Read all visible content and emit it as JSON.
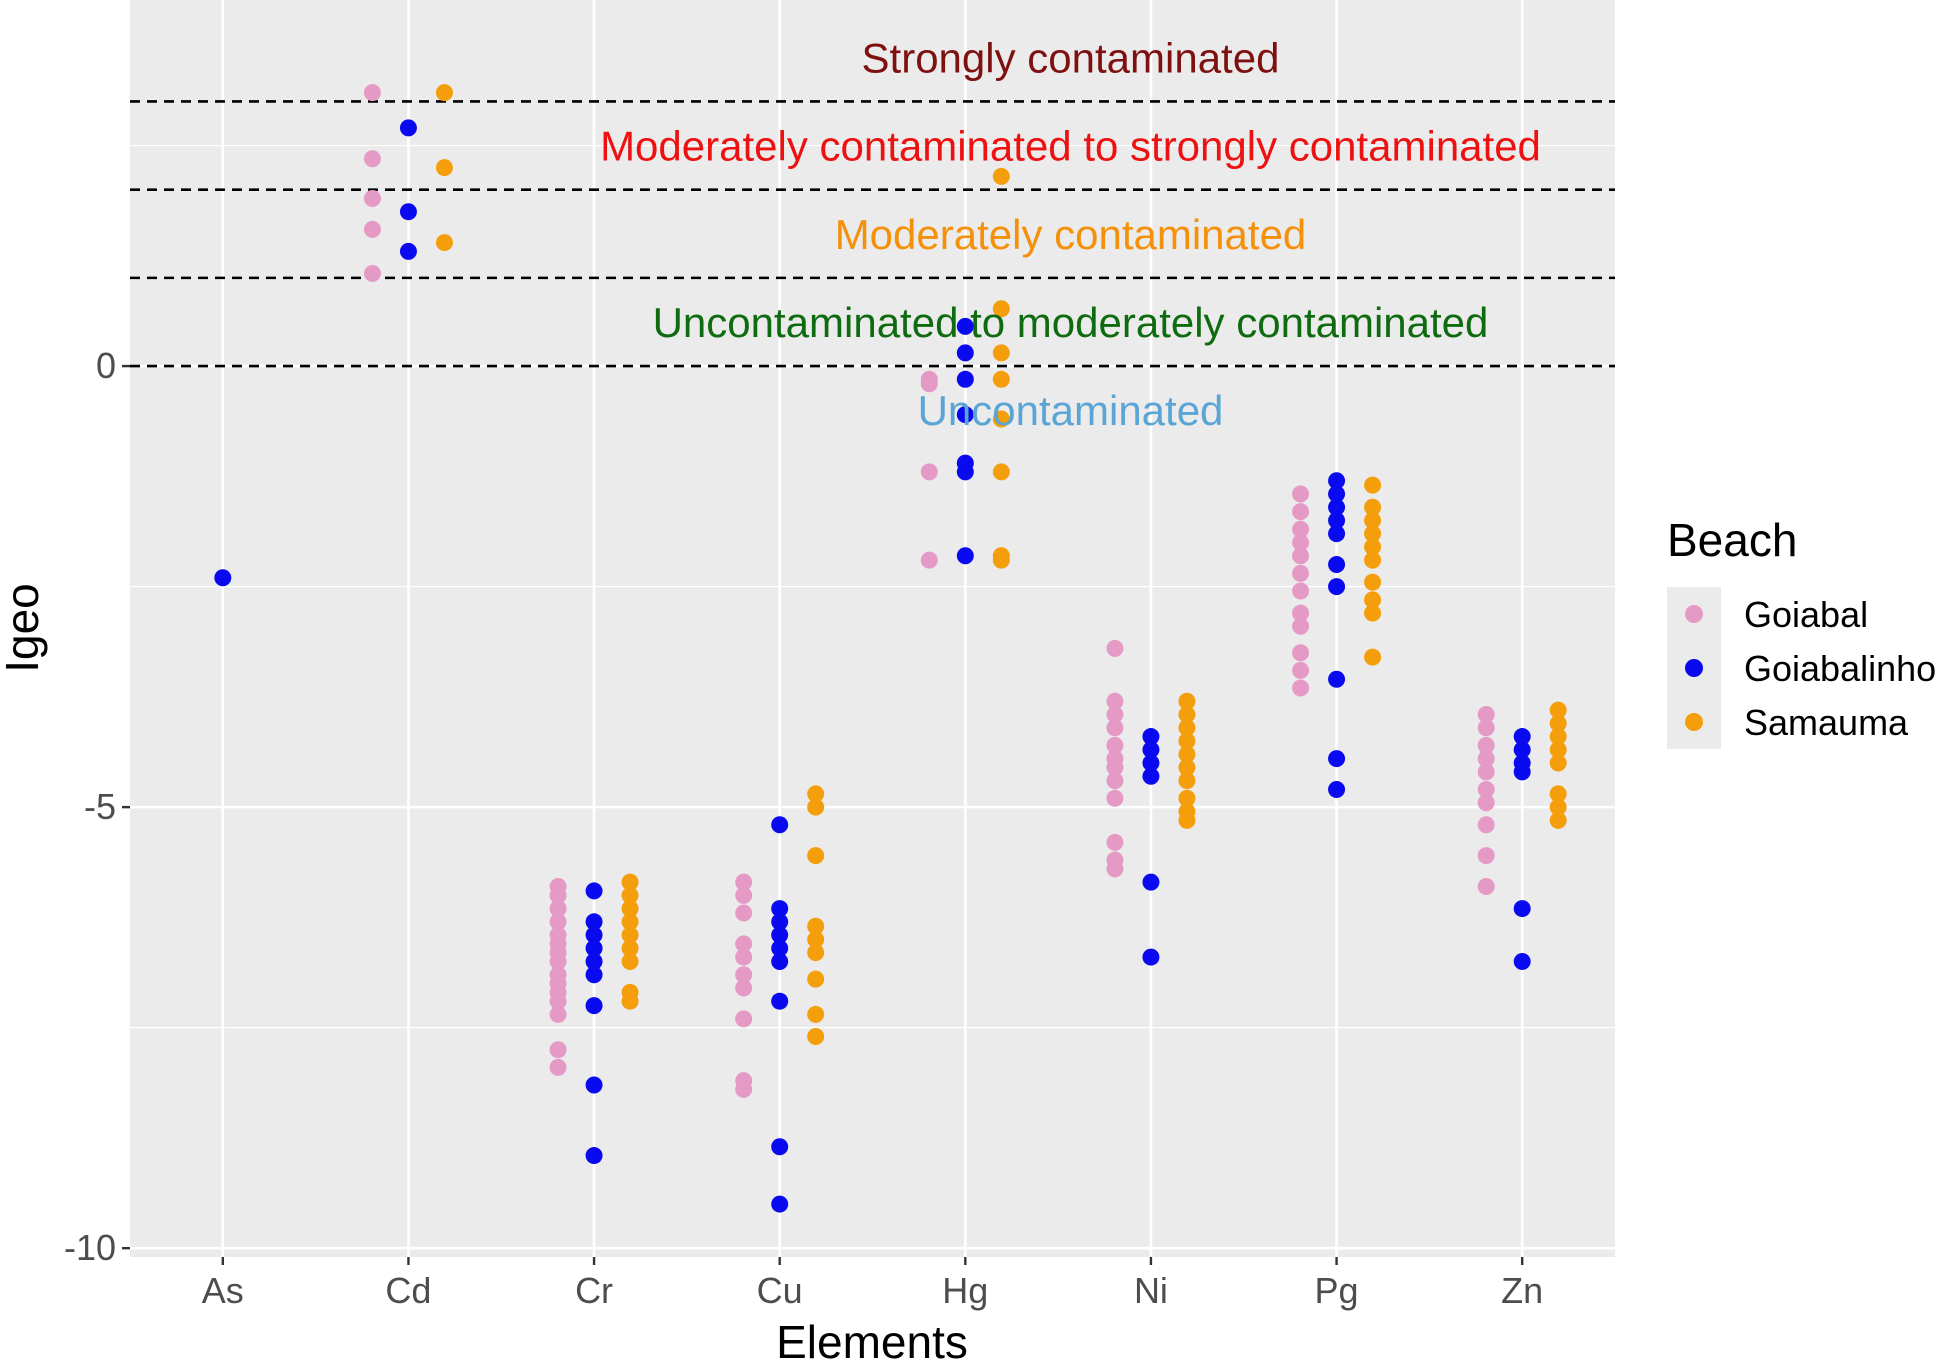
{
  "chart_data": {
    "type": "scatter",
    "xlabel": "Elements",
    "ylabel": "Igeo",
    "categories": [
      "As",
      "Cd",
      "Cr",
      "Cu",
      "Hg",
      "Ni",
      "Pg",
      "Zn"
    ],
    "ylim": [
      -10.1,
      4.15
    ],
    "yticks": [
      0,
      -5,
      -10
    ],
    "ytick_labels": [
      "0",
      "-5",
      "-10"
    ],
    "grid": true,
    "thresholds": [
      3,
      2,
      1,
      0
    ],
    "zones": [
      {
        "label": "Strongly contaminated",
        "y": 3.5,
        "color": "#7f1010"
      },
      {
        "label": "Moderately contaminated to strongly contaminated",
        "y": 2.5,
        "color": "#ee1111"
      },
      {
        "label": "Moderately contaminated",
        "y": 1.5,
        "color": "#f5900a"
      },
      {
        "label": "Uncontaminated to moderately contaminated",
        "y": 0.5,
        "color": "#0f6b0f"
      },
      {
        "label": "Uncontaminated",
        "y": -0.5,
        "color": "#5aa5d5"
      }
    ],
    "legend": {
      "title": "Beach",
      "position": "right"
    },
    "series": [
      {
        "name": "Goiabal",
        "color": "#e59ac6",
        "points": {
          "As": [],
          "Cd": [
            3.1,
            2.35,
            1.9,
            1.55,
            1.05
          ],
          "Cr": [
            -5.9,
            -6.0,
            -6.15,
            -6.3,
            -6.45,
            -6.55,
            -6.65,
            -6.75,
            -6.9,
            -7.0,
            -7.1,
            -7.2,
            -7.35,
            -7.75,
            -7.95
          ],
          "Cu": [
            -5.85,
            -6.0,
            -6.2,
            -6.55,
            -6.7,
            -6.9,
            -7.05,
            -7.4,
            -8.1,
            -8.2
          ],
          "Hg": [
            -0.15,
            -0.2,
            -1.2,
            -2.2
          ],
          "Ni": [
            -3.2,
            -3.8,
            -3.95,
            -4.1,
            -4.3,
            -4.45,
            -4.55,
            -4.7,
            -4.9,
            -5.4,
            -5.6,
            -5.7
          ],
          "Pg": [
            -1.45,
            -1.65,
            -1.85,
            -2.0,
            -2.15,
            -2.35,
            -2.55,
            -2.8,
            -2.95,
            -3.25,
            -3.45,
            -3.65
          ],
          "Zn": [
            -3.95,
            -4.1,
            -4.3,
            -4.45,
            -4.6,
            -4.8,
            -4.95,
            -5.2,
            -5.55,
            -5.9
          ]
        }
      },
      {
        "name": "Goiabalinho",
        "color": "#0a0af0",
        "points": {
          "As": [
            -2.4
          ],
          "Cd": [
            2.7,
            1.75,
            1.3
          ],
          "Cr": [
            -5.95,
            -6.3,
            -6.45,
            -6.6,
            -6.75,
            -6.9,
            -7.25,
            -8.15,
            -8.95
          ],
          "Cu": [
            -5.2,
            -6.15,
            -6.3,
            -6.45,
            -6.6,
            -6.75,
            -7.2,
            -8.85,
            -9.5
          ],
          "Hg": [
            0.45,
            0.15,
            -0.15,
            -0.55,
            -1.1,
            -1.2,
            -2.15
          ],
          "Ni": [
            -4.2,
            -4.35,
            -4.5,
            -4.65,
            -5.85,
            -6.7
          ],
          "Pg": [
            -1.3,
            -1.45,
            -1.6,
            -1.75,
            -1.9,
            -2.25,
            -2.5,
            -3.55,
            -4.45,
            -4.8
          ],
          "Zn": [
            -4.2,
            -4.35,
            -4.5,
            -4.6,
            -6.15,
            -6.75
          ]
        }
      },
      {
        "name": "Samauma",
        "color": "#f59e0b",
        "points": {
          "As": [],
          "Cd": [
            3.1,
            2.25,
            1.4
          ],
          "Cr": [
            -5.85,
            -6.0,
            -6.15,
            -6.3,
            -6.45,
            -6.6,
            -6.75,
            -7.1,
            -7.2
          ],
          "Cu": [
            -4.85,
            -5.0,
            -5.55,
            -6.35,
            -6.5,
            -6.65,
            -6.95,
            -7.35,
            -7.6
          ],
          "Hg": [
            2.15,
            0.65,
            0.15,
            -0.15,
            -0.6,
            -1.2,
            -2.15,
            -2.2
          ],
          "Ni": [
            -3.8,
            -3.95,
            -4.1,
            -4.25,
            -4.4,
            -4.55,
            -4.7,
            -4.9,
            -5.05,
            -5.15
          ],
          "Pg": [
            -1.35,
            -1.6,
            -1.75,
            -1.9,
            -2.05,
            -2.2,
            -2.45,
            -2.65,
            -2.8,
            -3.3
          ],
          "Zn": [
            -3.9,
            -4.05,
            -4.2,
            -4.35,
            -4.5,
            -4.85,
            -5.0,
            -5.15
          ]
        }
      }
    ]
  }
}
